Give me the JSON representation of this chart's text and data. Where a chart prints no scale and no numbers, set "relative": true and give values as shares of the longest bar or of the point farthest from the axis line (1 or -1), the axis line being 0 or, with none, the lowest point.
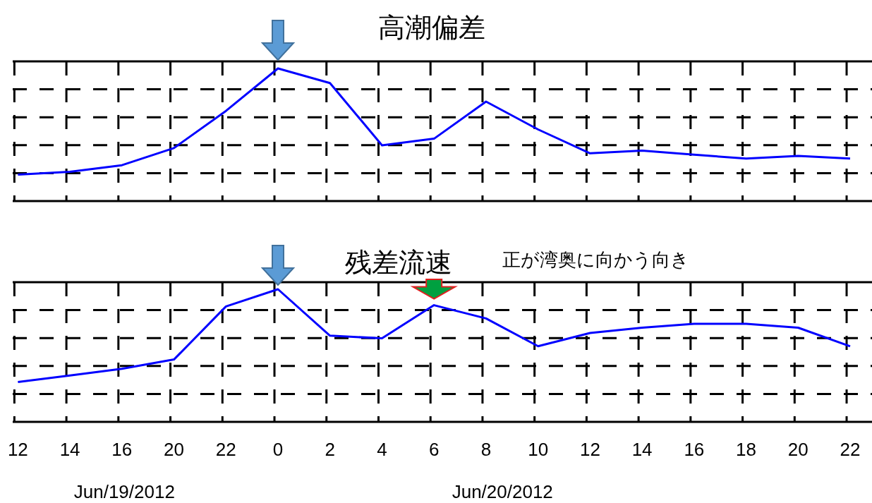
{
  "chart_data": [
    {
      "type": "line",
      "title": "高潮偏差",
      "relative": true,
      "grid": true,
      "tick_labels": false,
      "marker": "none",
      "line_style": "solid",
      "categories": [
        "12",
        "14",
        "16",
        "20",
        "22",
        "0",
        "2",
        "4",
        "6",
        "8",
        "10",
        "12",
        "14",
        "16",
        "18",
        "20",
        "22"
      ],
      "series": [
        {
          "color": "#0000ff",
          "values": [
            0.2,
            0.22,
            0.27,
            0.4,
            0.68,
            1,
            0.89,
            0.42,
            0.47,
            0.75,
            0.54,
            0.36,
            0.38,
            0.35,
            0.32,
            0.34,
            0.32
          ]
        }
      ]
    },
    {
      "type": "line",
      "title": "残差流速",
      "subtitle": "正が湾奥に向かう向き",
      "relative": true,
      "grid": true,
      "tick_labels": "x",
      "marker": "none",
      "line_style": "solid",
      "categories": [
        "12",
        "14",
        "16",
        "20",
        "22",
        "0",
        "2",
        "4",
        "6",
        "8",
        "10",
        "12",
        "14",
        "16",
        "18",
        "20",
        "22"
      ],
      "annotations": [
        "Jun/19/2012",
        "Jun/20/2012"
      ],
      "series": [
        {
          "color": "#0000ff",
          "values": [
            0.3,
            0.35,
            0.4,
            0.47,
            0.87,
            1,
            0.65,
            0.63,
            0.88,
            0.78,
            0.57,
            0.67,
            0.71,
            0.74,
            0.74,
            0.71,
            0.57
          ]
        }
      ]
    }
  ]
}
